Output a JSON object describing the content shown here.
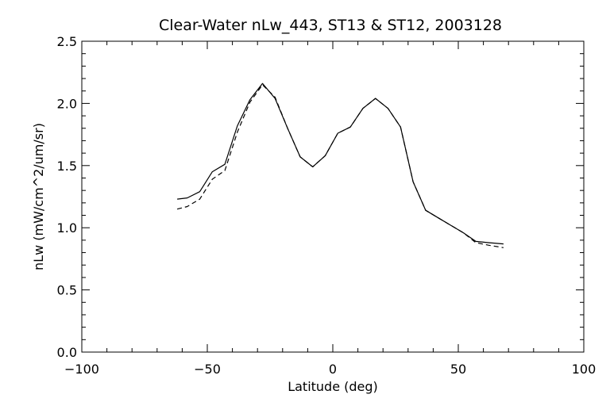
{
  "chart_data": {
    "type": "line",
    "title": "Clear-Water nLw_443, ST13 & ST12, 2003128",
    "xlabel": "Latitude (deg)",
    "ylabel": "nLw (mW/cm^2/um/sr)",
    "xlim": [
      -100,
      100
    ],
    "ylim": [
      0.0,
      2.5
    ],
    "xticks": [
      -100,
      -50,
      0,
      50,
      100
    ],
    "xtick_labels": [
      "−100",
      "−50",
      "0",
      "50",
      "100"
    ],
    "yticks": [
      0.0,
      0.5,
      1.0,
      1.5,
      2.0,
      2.5
    ],
    "ytick_labels": [
      "0.0",
      "0.5",
      "1.0",
      "1.5",
      "2.0",
      "2.5"
    ],
    "grid": false,
    "colors": {
      "line": "#000000",
      "background": "#ffffff"
    },
    "series": [
      {
        "style": "solid",
        "x": [
          -62,
          -58,
          -53,
          -48,
          -43,
          -38,
          -33,
          -28,
          -23,
          -18,
          -13,
          -8,
          -3,
          2,
          7,
          12,
          17,
          22,
          27,
          32,
          37,
          42,
          47,
          52,
          57,
          62,
          68
        ],
        "y": [
          1.23,
          1.24,
          1.29,
          1.45,
          1.51,
          1.82,
          2.03,
          2.16,
          2.04,
          1.8,
          1.57,
          1.49,
          1.58,
          1.76,
          1.81,
          1.96,
          2.04,
          1.96,
          1.81,
          1.37,
          1.14,
          1.08,
          1.02,
          0.96,
          0.89,
          0.88,
          0.87
        ]
      },
      {
        "style": "dashed",
        "x": [
          -62,
          -58,
          -53,
          -48,
          -43,
          -38,
          -33,
          -28,
          -23,
          -18,
          -13,
          -8,
          -3,
          2,
          7,
          12,
          17,
          22,
          27,
          32,
          37,
          42,
          47,
          52,
          57,
          62,
          68
        ],
        "y": [
          1.15,
          1.17,
          1.23,
          1.39,
          1.46,
          1.77,
          2.01,
          2.15,
          2.05,
          1.8,
          1.57,
          1.49,
          1.58,
          1.76,
          1.81,
          1.96,
          2.04,
          1.96,
          1.81,
          1.37,
          1.14,
          1.08,
          1.02,
          0.96,
          0.88,
          0.86,
          0.84
        ]
      }
    ]
  }
}
